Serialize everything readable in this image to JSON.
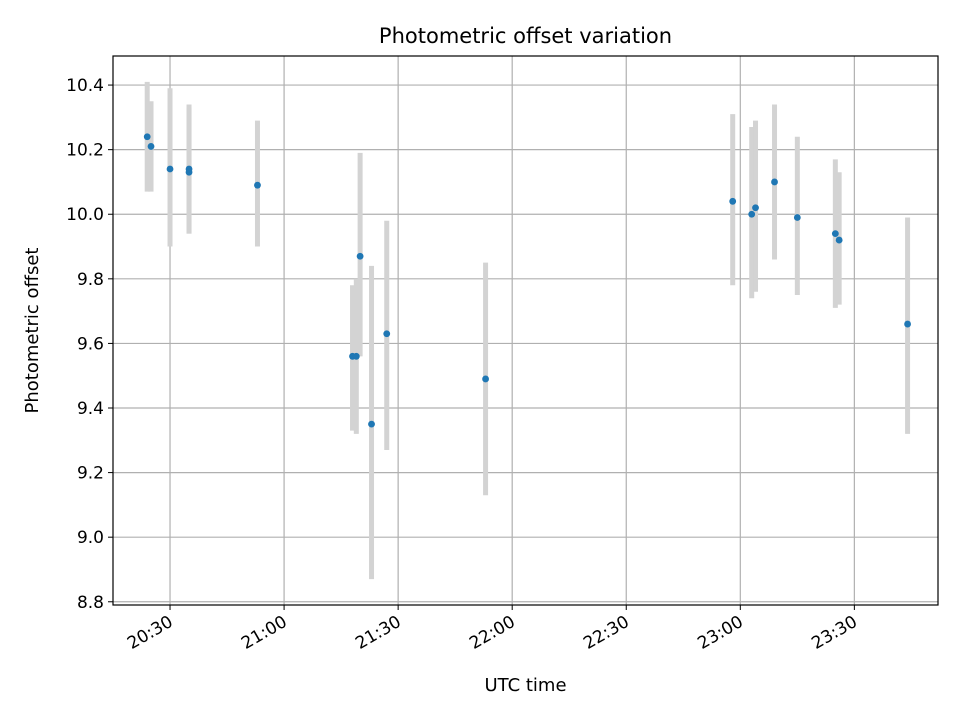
{
  "chart_data": {
    "type": "scatter",
    "title": "Photometric offset variation",
    "xlabel": "UTC time",
    "ylabel": "Photometric offset",
    "xlim": [
      "20:15",
      "23:52"
    ],
    "ylim": [
      8.79,
      10.49
    ],
    "x_ticks": [
      "20:30",
      "21:00",
      "21:30",
      "22:00",
      "22:30",
      "23:00",
      "23:30"
    ],
    "y_ticks": [
      8.8,
      9.0,
      9.2,
      9.4,
      9.6,
      9.8,
      10.0,
      10.2,
      10.4
    ],
    "grid": true,
    "colors": {
      "points": "#1f77b4",
      "error_bars": "#d3d3d3",
      "grid": "#b0b0b0",
      "axes": "#000000"
    },
    "series": [
      {
        "points": [
          {
            "x": "20:24",
            "y": 10.24,
            "ylow": 10.07,
            "yhigh": 10.41
          },
          {
            "x": "20:25",
            "y": 10.21,
            "ylow": 10.07,
            "yhigh": 10.35
          },
          {
            "x": "20:30",
            "y": 10.14,
            "ylow": 9.9,
            "yhigh": 10.39
          },
          {
            "x": "20:35",
            "y": 10.13,
            "ylow": 9.94,
            "yhigh": 10.33
          },
          {
            "x": "20:35",
            "y": 10.14,
            "ylow": 9.94,
            "yhigh": 10.34
          },
          {
            "x": "20:53",
            "y": 10.09,
            "ylow": 9.9,
            "yhigh": 10.29
          },
          {
            "x": "21:18",
            "y": 9.56,
            "ylow": 9.33,
            "yhigh": 9.78
          },
          {
            "x": "21:19",
            "y": 9.56,
            "ylow": 9.32,
            "yhigh": 9.8
          },
          {
            "x": "21:20",
            "y": 9.87,
            "ylow": 9.56,
            "yhigh": 10.19
          },
          {
            "x": "21:23",
            "y": 9.35,
            "ylow": 8.87,
            "yhigh": 9.84
          },
          {
            "x": "21:27",
            "y": 9.63,
            "ylow": 9.27,
            "yhigh": 9.98
          },
          {
            "x": "21:53",
            "y": 9.49,
            "ylow": 9.13,
            "yhigh": 9.85
          },
          {
            "x": "22:58",
            "y": 10.04,
            "ylow": 9.78,
            "yhigh": 10.31
          },
          {
            "x": "23:03",
            "y": 10.0,
            "ylow": 9.74,
            "yhigh": 10.27
          },
          {
            "x": "23:04",
            "y": 10.02,
            "ylow": 9.76,
            "yhigh": 10.29
          },
          {
            "x": "23:09",
            "y": 10.1,
            "ylow": 9.86,
            "yhigh": 10.34
          },
          {
            "x": "23:15",
            "y": 9.99,
            "ylow": 9.75,
            "yhigh": 10.24
          },
          {
            "x": "23:25",
            "y": 9.94,
            "ylow": 9.71,
            "yhigh": 10.17
          },
          {
            "x": "23:26",
            "y": 9.92,
            "ylow": 9.72,
            "yhigh": 10.13
          },
          {
            "x": "23:44",
            "y": 9.66,
            "ylow": 9.32,
            "yhigh": 9.99
          }
        ]
      }
    ]
  }
}
